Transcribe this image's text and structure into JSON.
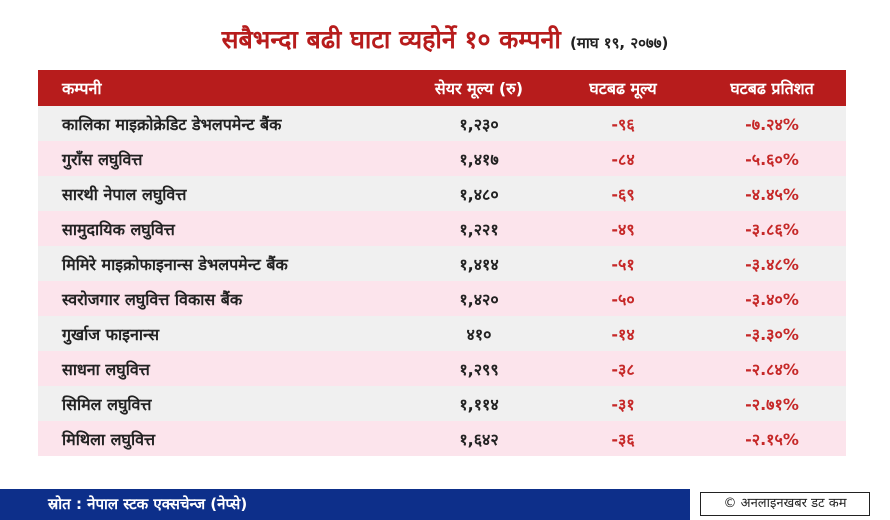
{
  "title": {
    "main": "सबैभन्दा बढी घाटा व्यहोर्ने १० कम्पनी",
    "date": "(माघ १९, २०७७)"
  },
  "table": {
    "headers": [
      "कम्पनी",
      "सेयर मूल्य (रु)",
      "घटबढ मूल्य",
      "घटबढ प्रतिशत"
    ],
    "rows": [
      {
        "company": "कालिका माइक्रोक्रेडिट डेभलपमेन्ट बैंक",
        "price": "१,२३०",
        "change": "-९६",
        "percent": "-७.२४%"
      },
      {
        "company": "गुराँस लघुवित्त",
        "price": "१,४१७",
        "change": "-८४",
        "percent": "-५.६०%"
      },
      {
        "company": "सारथी नेपाल लघुवित्त",
        "price": "१,४८०",
        "change": "-६९",
        "percent": "-४.४५%"
      },
      {
        "company": "सामुदायिक लघुवित्त",
        "price": "१,२२१",
        "change": "-४९",
        "percent": "-३.८६%"
      },
      {
        "company": "मिमिरे माइक्रोफाइनान्स डेभलपमेन्ट बैंक",
        "price": "१,४१४",
        "change": "-५१",
        "percent": "-३.४८%"
      },
      {
        "company": "स्वरोजगार लघुवित्त विकास बैंक",
        "price": "१,४२०",
        "change": "-५०",
        "percent": "-३.४०%"
      },
      {
        "company": "गुर्खाज फाइनान्स",
        "price": "४१०",
        "change": "-१४",
        "percent": "-३.३०%"
      },
      {
        "company": "साधना लघुवित्त",
        "price": "१,२९९",
        "change": "-३८",
        "percent": "-२.८४%"
      },
      {
        "company": "सिमिल लघुवित्त",
        "price": "१,११४",
        "change": "-३१",
        "percent": "-२.७१%"
      },
      {
        "company": "मिथिला लघुवित्त",
        "price": "१,६४२",
        "change": "-३६",
        "percent": "-२.१५%"
      }
    ]
  },
  "footer": {
    "source": "स्रोत : नेपाल स्टक एक्सचेन्ज (नेप्से)",
    "brand": "© अनलाइनखबर डट कम"
  },
  "colors": {
    "title_red": "#b71c1c",
    "header_bg": "#b71c1c",
    "negative_text": "#c62828",
    "row_gray": "#f0f0f0",
    "row_pink": "#fce4ec",
    "footer_blue": "#0d2f8a"
  }
}
